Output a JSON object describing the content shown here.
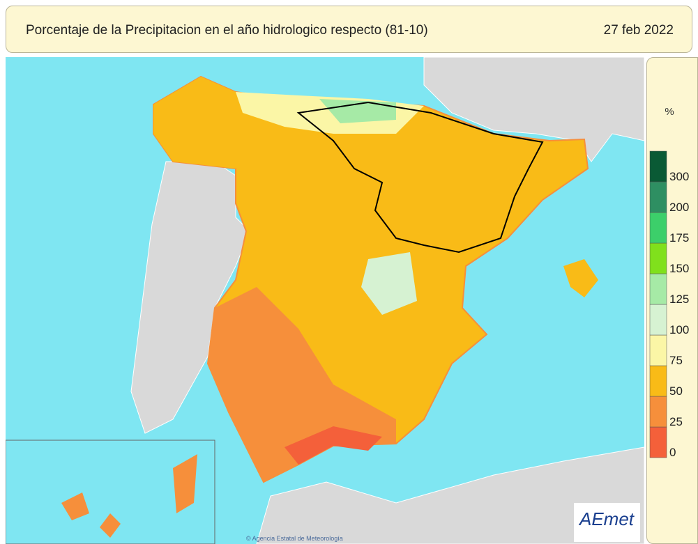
{
  "header": {
    "title": "Porcentaje de la Precipitacion en el año hidrologico respecto (81-10)",
    "date": "27 feb 2022"
  },
  "legend": {
    "unit": "%",
    "ticks": [
      0,
      25,
      50,
      75,
      100,
      125,
      150,
      175,
      200,
      300
    ],
    "colors": [
      "#f4603a",
      "#f68f3b",
      "#f9bb17",
      "#fbf6a6",
      "#d6f2d2",
      "#a6eaa6",
      "#80e01c",
      "#3ccf6a",
      "#2e8f62",
      "#0a5a35"
    ]
  },
  "footer": {
    "credit": "© Agencia Estatal de Meteorología"
  },
  "logo": {
    "text": "AEmet"
  }
}
